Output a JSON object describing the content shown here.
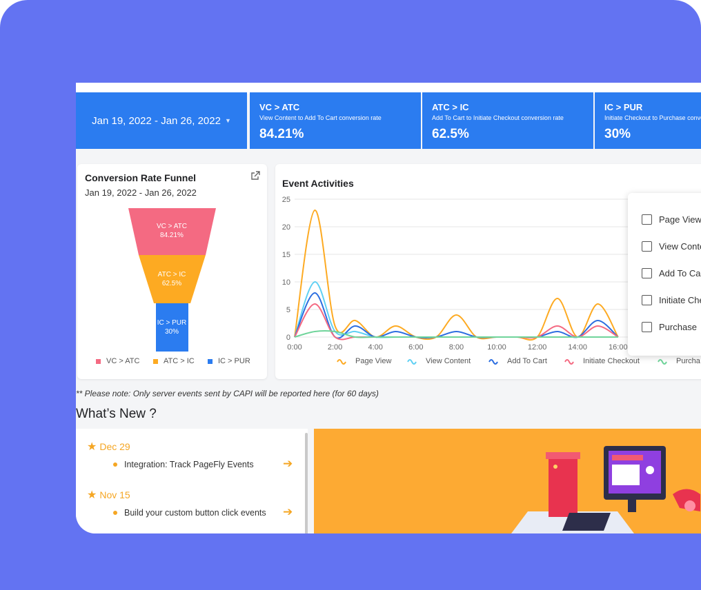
{
  "date_range": "Jan 19, 2022 - Jan 26, 2022",
  "metrics": [
    {
      "title": "VC > ATC",
      "subtitle": "View Content to Add To Cart conversion rate",
      "value": "84.21%"
    },
    {
      "title": "ATC > IC",
      "subtitle": "Add To Cart to Initiate Checkout conversion rate",
      "value": "62.5%"
    },
    {
      "title": "IC > PUR",
      "subtitle": "Initiate Checkout to Purchase conversion rate",
      "value": "30%"
    }
  ],
  "funnel": {
    "title": "Conversion Rate Funnel",
    "date": "Jan 19, 2022 - Jan 26, 2022",
    "stages": [
      {
        "label": "VC > ATC",
        "value": "84.21%",
        "color": "#f46a82"
      },
      {
        "label": "ATC > IC",
        "value": "62.5%",
        "color": "#fdaa22"
      },
      {
        "label": "IC > PUR",
        "value": "30%",
        "color": "#2b7cf0"
      }
    ],
    "legend": [
      "VC > ATC",
      "ATC > IC",
      "IC > PUR"
    ]
  },
  "events": {
    "title": "Event Activities",
    "dropdown_items": [
      "Page View",
      "View Content",
      "Add To Cart",
      "Initiate Checkout",
      "Purchase"
    ]
  },
  "chart_data": {
    "type": "line",
    "title": "Event Activities",
    "x": [
      "0:00",
      "1:00",
      "2:00",
      "3:00",
      "4:00",
      "5:00",
      "6:00",
      "7:00",
      "8:00",
      "9:00",
      "10:00",
      "11:00",
      "12:00",
      "13:00",
      "14:00",
      "15:00",
      "16:00"
    ],
    "xticks": [
      "0:00",
      "2:00",
      "4:00",
      "6:00",
      "8:00",
      "10:00",
      "12:00",
      "14:00",
      "16:00"
    ],
    "ylim": [
      0,
      25
    ],
    "yticks": [
      0,
      5,
      10,
      15,
      20,
      25
    ],
    "series": [
      {
        "name": "Page View",
        "color": "#fdaa22",
        "values": [
          0,
          23,
          2,
          3,
          0,
          2,
          0,
          0,
          4,
          0,
          0,
          0,
          0,
          7,
          0,
          6,
          0
        ]
      },
      {
        "name": "View Content",
        "color": "#5fd0f3",
        "values": [
          0,
          10,
          1,
          1,
          0,
          0,
          0,
          0,
          0,
          0,
          0,
          0,
          0,
          0,
          0,
          0,
          0
        ]
      },
      {
        "name": "Add To Cart",
        "color": "#2b6de0",
        "values": [
          0,
          8,
          0,
          2,
          0,
          1,
          0,
          0,
          1,
          0,
          0,
          0,
          0,
          1,
          0,
          3,
          0
        ]
      },
      {
        "name": "Initiate Checkout",
        "color": "#f46a82",
        "values": [
          0,
          6,
          0,
          0,
          0,
          0,
          0,
          0,
          0,
          0,
          0,
          0,
          0,
          2,
          0,
          2,
          0
        ]
      },
      {
        "name": "Purchase",
        "color": "#6fd49a",
        "values": [
          0,
          1,
          1,
          0,
          0,
          0,
          0,
          0,
          0,
          0,
          0,
          0,
          0,
          0,
          0,
          0,
          0
        ]
      }
    ],
    "legend_labels": [
      "Page View",
      "View Content",
      "Add To Cart",
      "Initiate Checkout",
      "Purcha"
    ]
  },
  "note": "** Please note: Only server events sent by CAPI will be reported here (for 60 days)",
  "whats_new": {
    "heading": "What’s New ?",
    "entries": [
      {
        "date": "Dec 29",
        "item": "Integration: Track PageFly Events"
      },
      {
        "date": "Nov 15",
        "item": "Build your custom button click events"
      }
    ]
  }
}
